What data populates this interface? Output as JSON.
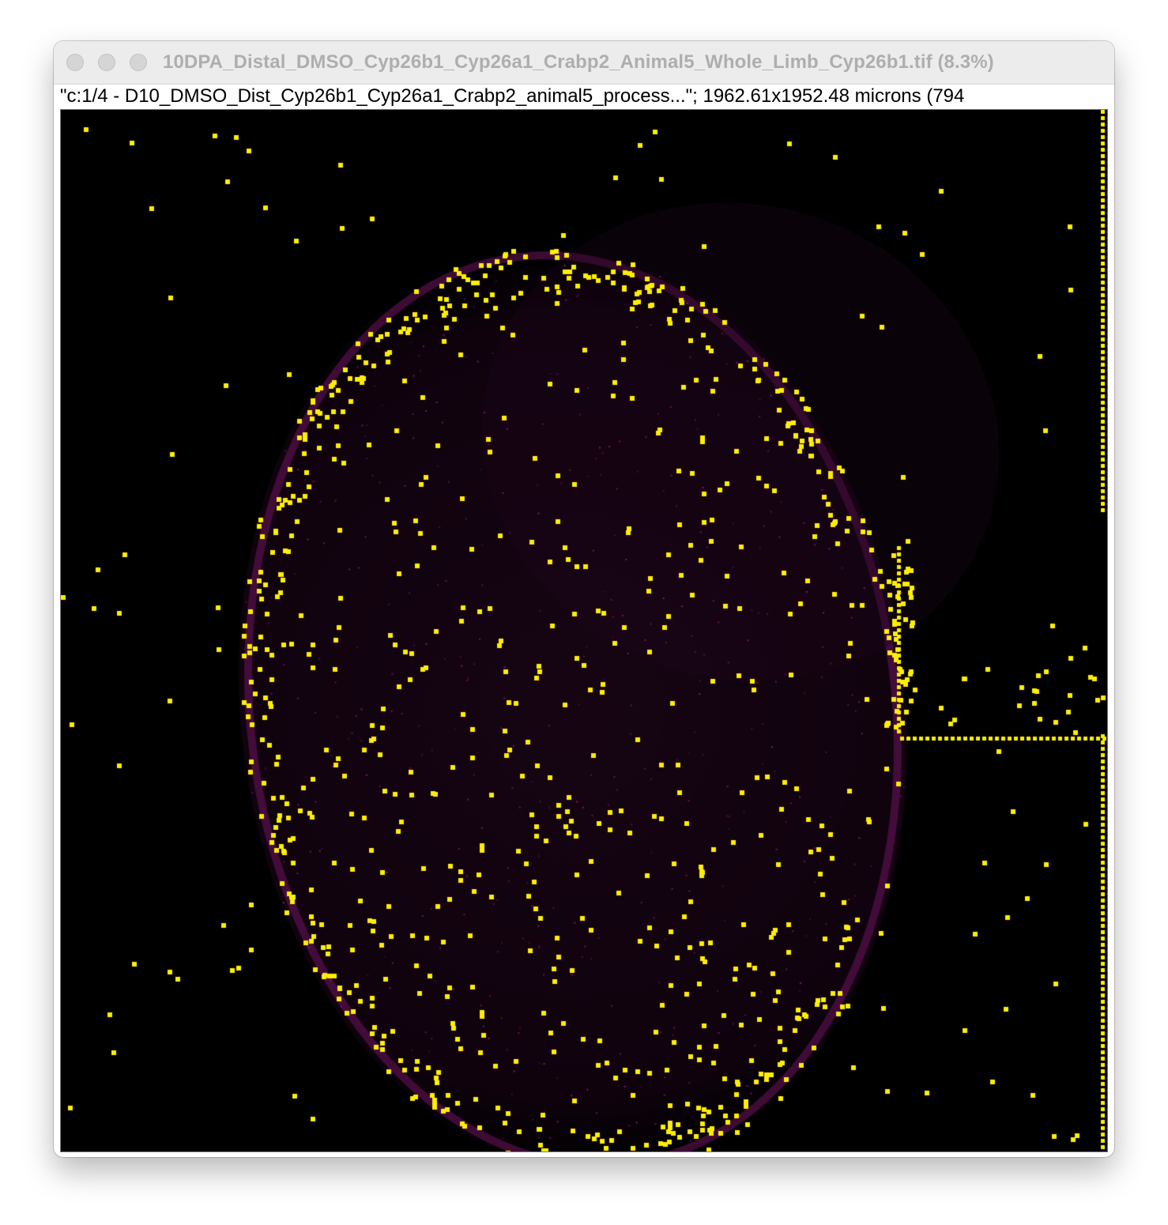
{
  "window": {
    "title": "10DPA_Distal_DMSO_Cyp26b1_Cyp26a1_Crabp2_Animal5_Whole_Limb_Cyp26b1.tif (8.3%)",
    "info": "\"c:1/4 - D10_DMSO_Dist_Cyp26b1_Cyp26a1_Crabp2_animal5_process...\"; 1962.61x1952.48 microns (794"
  },
  "image": {
    "background_color": "#000000",
    "tissue_color": "#2a0a22",
    "tissue_edge_color": "#5c1050",
    "marker_color": "#ffee00"
  }
}
